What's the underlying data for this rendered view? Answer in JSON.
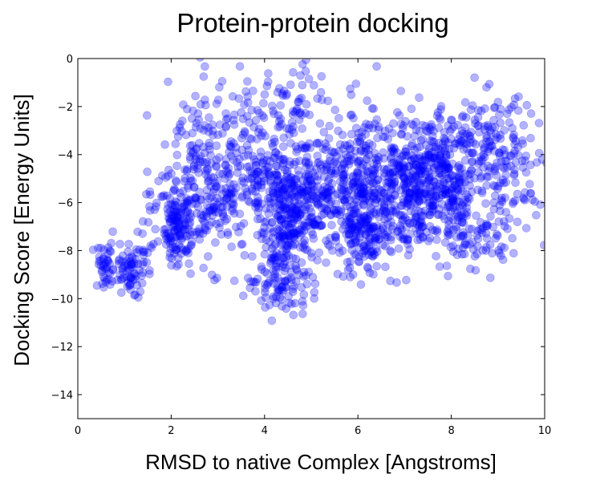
{
  "chart_data": {
    "type": "scatter",
    "title": "Protein-protein docking",
    "xlabel": "RMSD to native Complex [Angstroms]",
    "ylabel": "Docking Score [Energy Units]",
    "xlim": [
      0,
      10
    ],
    "ylim": [
      -15,
      0
    ],
    "grid": false,
    "legend": "none",
    "marker_color": "#0000ff",
    "marker_alpha": 0.3,
    "x_ticks": [
      {
        "value": 0,
        "label": "0"
      },
      {
        "value": 2,
        "label": "2"
      },
      {
        "value": 4,
        "label": "4"
      },
      {
        "value": 6,
        "label": "6"
      },
      {
        "value": 8,
        "label": "8"
      },
      {
        "value": 10,
        "label": "10"
      }
    ],
    "y_ticks": [
      {
        "value": 0,
        "label": "0"
      },
      {
        "value": -2,
        "label": "−2"
      },
      {
        "value": -4,
        "label": "−4"
      },
      {
        "value": -6,
        "label": "−6"
      },
      {
        "value": -8,
        "label": "−8"
      },
      {
        "value": -10,
        "label": "−10"
      },
      {
        "value": -12,
        "label": "−12"
      },
      {
        "value": -14,
        "label": "−14"
      }
    ],
    "clusters": [
      {
        "cx": 0.6,
        "cy": -8.7,
        "sx": 0.15,
        "sy": 0.5,
        "n": 45
      },
      {
        "cx": 1.1,
        "cy": -9.0,
        "sx": 0.12,
        "sy": 0.45,
        "n": 55
      },
      {
        "cx": 1.4,
        "cy": -8.2,
        "sx": 0.12,
        "sy": 0.5,
        "n": 20
      },
      {
        "cx": 1.6,
        "cy": -6.3,
        "sx": 0.12,
        "sy": 1.0,
        "n": 15
      },
      {
        "cx": 2.15,
        "cy": -7.0,
        "sx": 0.15,
        "sy": 0.8,
        "n": 120
      },
      {
        "cx": 2.3,
        "cy": -4.5,
        "sx": 0.3,
        "sy": 1.3,
        "n": 80
      },
      {
        "cx": 2.9,
        "cy": -5.8,
        "sx": 0.4,
        "sy": 1.3,
        "n": 160
      },
      {
        "cx": 3.3,
        "cy": -2.6,
        "sx": 0.4,
        "sy": 1.2,
        "n": 60
      },
      {
        "cx": 3.8,
        "cy": -5.2,
        "sx": 0.3,
        "sy": 1.0,
        "n": 90
      },
      {
        "cx": 4.5,
        "cy": -6.5,
        "sx": 0.3,
        "sy": 1.6,
        "n": 320
      },
      {
        "cx": 4.3,
        "cy": -9.3,
        "sx": 0.35,
        "sy": 0.7,
        "n": 70
      },
      {
        "cx": 4.6,
        "cy": -2.0,
        "sx": 0.4,
        "sy": 1.1,
        "n": 60
      },
      {
        "cx": 5.3,
        "cy": -5.8,
        "sx": 0.4,
        "sy": 1.1,
        "n": 200
      },
      {
        "cx": 5.8,
        "cy": -3.3,
        "sx": 0.5,
        "sy": 0.9,
        "n": 50
      },
      {
        "cx": 6.1,
        "cy": -7.6,
        "sx": 0.25,
        "sy": 0.8,
        "n": 110
      },
      {
        "cx": 6.2,
        "cy": -5.3,
        "sx": 0.4,
        "sy": 1.0,
        "n": 160
      },
      {
        "cx": 7.0,
        "cy": -5.8,
        "sx": 0.5,
        "sy": 1.2,
        "n": 260
      },
      {
        "cx": 7.4,
        "cy": -4.0,
        "sx": 0.5,
        "sy": 1.1,
        "n": 160
      },
      {
        "cx": 8.1,
        "cy": -5.5,
        "sx": 0.5,
        "sy": 1.3,
        "n": 240
      },
      {
        "cx": 8.5,
        "cy": -7.6,
        "sx": 0.4,
        "sy": 0.6,
        "n": 50
      },
      {
        "cx": 8.7,
        "cy": -3.1,
        "sx": 0.5,
        "sy": 0.9,
        "n": 90
      },
      {
        "cx": 9.4,
        "cy": -4.8,
        "sx": 0.4,
        "sy": 1.2,
        "n": 70
      }
    ]
  }
}
